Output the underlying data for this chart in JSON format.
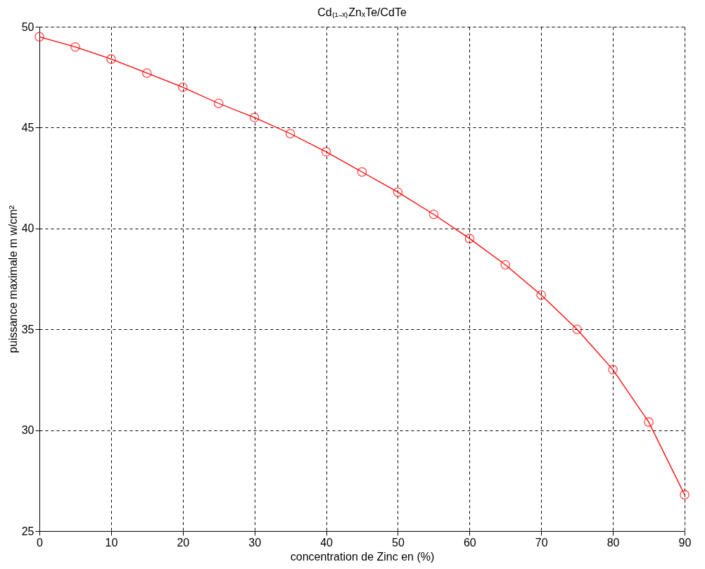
{
  "chart_data": {
    "type": "line",
    "title": "Cd₍₁₋ₓ₎ZnₓTe/CdTe",
    "xlabel": "concentration de Zinc en (%)",
    "ylabel": "puissance maximale m w/cm²",
    "x": [
      0,
      5,
      10,
      15,
      20,
      25,
      30,
      35,
      40,
      45,
      50,
      55,
      60,
      65,
      70,
      75,
      80,
      85,
      90
    ],
    "series": [
      {
        "color": "#ff0000",
        "values": [
          49.5,
          49.0,
          48.4,
          47.7,
          47.0,
          46.2,
          45.5,
          44.7,
          43.8,
          42.8,
          41.8,
          40.7,
          39.5,
          38.2,
          36.7,
          35.0,
          33.0,
          30.4,
          26.8
        ]
      }
    ],
    "xlim": [
      0,
      90
    ],
    "xticks": [
      0,
      10,
      20,
      30,
      40,
      50,
      60,
      70,
      80,
      90
    ],
    "ylim": [
      25,
      50
    ],
    "yticks": [
      25,
      30,
      35,
      40,
      45,
      50
    ],
    "grid": true,
    "marker": "circle",
    "line_style": "solid"
  }
}
